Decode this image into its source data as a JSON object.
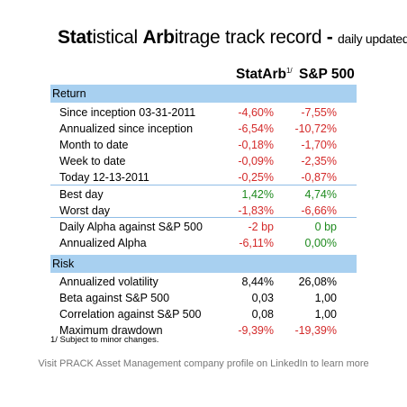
{
  "title": {
    "part1_bold": "Stat",
    "part1_rest": "istical ",
    "part2_bold": "Arb",
    "part2_rest": "itrage track record",
    "dash": " - ",
    "suffix": "daily updated"
  },
  "columns": {
    "statarb": "StatArb",
    "statarb_note": "1/",
    "sp500": "S&P 500"
  },
  "sections": {
    "return": "Return",
    "risk": "Risk"
  },
  "rows": [
    {
      "label": "Since inception 03-31-2011",
      "statarb": "-4,60%",
      "sp500": "-7,55%",
      "c1": "red",
      "c2": "red"
    },
    {
      "label": "Annualized since inception",
      "statarb": "-6,54%",
      "sp500": "-10,72%",
      "c1": "red",
      "c2": "red"
    },
    {
      "label": "Month to date",
      "statarb": "-0,18%",
      "sp500": "-1,70%",
      "c1": "red",
      "c2": "red"
    },
    {
      "label": "Week to date",
      "statarb": "-0,09%",
      "sp500": "-2,35%",
      "c1": "red",
      "c2": "red"
    },
    {
      "label": "Today 12-13-2011",
      "statarb": "-0,25%",
      "sp500": "-0,87%",
      "c1": "red",
      "c2": "red"
    },
    {
      "label": "Best day",
      "statarb": "1,42%",
      "sp500": "4,74%",
      "c1": "green",
      "c2": "green"
    },
    {
      "label": "Worst day",
      "statarb": "-1,83%",
      "sp500": "-6,66%",
      "c1": "red",
      "c2": "red"
    },
    {
      "label": "Daily Alpha against S&P 500",
      "statarb": "-2 bp",
      "sp500": "0 bp",
      "c1": "red",
      "c2": "green"
    },
    {
      "label": "Annualized Alpha",
      "statarb": "-6,11%",
      "sp500": "0,00%",
      "c1": "red",
      "c2": "green"
    },
    {
      "label": "Annualized volatility",
      "statarb": "8,44%",
      "sp500": "26,08%",
      "c1": "black",
      "c2": "black"
    },
    {
      "label": "Beta against S&P 500",
      "statarb": "0,03",
      "sp500": "1,00",
      "c1": "black",
      "c2": "black"
    },
    {
      "label": "Correlation against S&P 500",
      "statarb": "0,08",
      "sp500": "1,00",
      "c1": "black",
      "c2": "black"
    },
    {
      "label": "Maximum drawdown",
      "statarb": "-9,39%",
      "sp500": "-19,39%",
      "c1": "red",
      "c2": "red"
    }
  ],
  "note": "1/ Subject to minor changes.",
  "footer": "Visit PRACK Asset Management company profile on LinkedIn to learn more",
  "colors": {
    "band": "#a8d0f0",
    "negative": "#d42a2a",
    "positive": "#1e8a1e"
  }
}
